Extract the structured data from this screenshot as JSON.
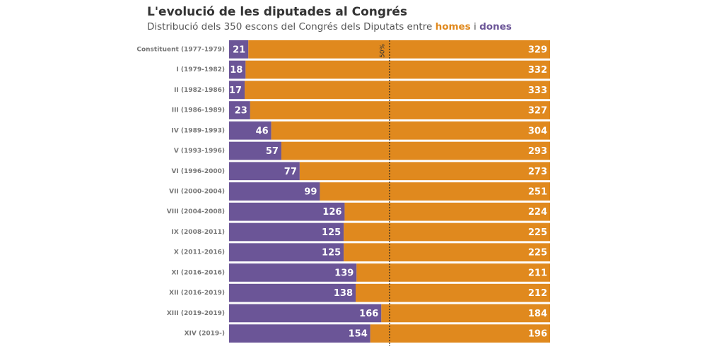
{
  "chart_data": {
    "type": "stacked-barh",
    "title": "L'evolució de les diputades al Congrés",
    "subtitle": "Distribució dels 350 escons del Congrés dels Diputats entre",
    "subtitle_connector": "i",
    "categories": [
      "Constituent (1977-1979)",
      "I (1979-1982)",
      "II (1982-1986)",
      "III (1986-1989)",
      "IV (1989-1993)",
      "V (1993-1996)",
      "VI (1996-2000)",
      "VII (2000-2004)",
      "VIII (2004-2008)",
      "IX (2008-2011)",
      "X (2011-2016)",
      "XI (2016-2016)",
      "XII (2016-2019)",
      "XIII (2019-2019)",
      "XIV (2019-)"
    ],
    "series": [
      {
        "name": "dones",
        "color": "#6b5597",
        "values": [
          21,
          18,
          17,
          23,
          46,
          57,
          77,
          99,
          126,
          125,
          125,
          139,
          138,
          166,
          154
        ]
      },
      {
        "name": "homes",
        "color": "#e0891e",
        "values": [
          329,
          332,
          333,
          327,
          304,
          293,
          273,
          251,
          224,
          225,
          225,
          211,
          212,
          184,
          196
        ]
      }
    ],
    "xlim": [
      0,
      350
    ],
    "annotation": {
      "text": "50%",
      "x": 175
    }
  }
}
